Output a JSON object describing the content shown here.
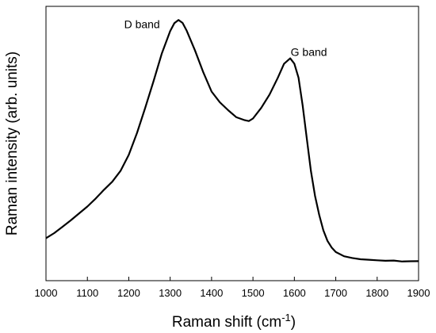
{
  "chart_data": {
    "type": "line",
    "xlabel": "Raman shift (cm",
    "xlabel_superscript": "-1",
    "xlabel_suffix": ")",
    "ylabel": "Raman intensity (arb. units)",
    "xlim": [
      1000,
      1900
    ],
    "ylim": [
      0,
      100
    ],
    "x_ticks": [
      1000,
      1100,
      1200,
      1300,
      1400,
      1500,
      1600,
      1700,
      1800,
      1900
    ],
    "y_tick_labels": false,
    "grid": false,
    "annotations": [
      {
        "text": "D band",
        "x": 1232,
        "y": 92
      },
      {
        "text": "G band",
        "x": 1635,
        "y": 82
      }
    ],
    "series": [
      {
        "x": [
          1000,
          1020,
          1040,
          1060,
          1080,
          1100,
          1120,
          1140,
          1160,
          1180,
          1200,
          1220,
          1240,
          1260,
          1280,
          1300,
          1310,
          1320,
          1330,
          1340,
          1360,
          1380,
          1400,
          1420,
          1440,
          1460,
          1480,
          1490,
          1500,
          1520,
          1540,
          1560,
          1575,
          1590,
          1600,
          1610,
          1620,
          1630,
          1640,
          1650,
          1660,
          1670,
          1680,
          1690,
          1700,
          1720,
          1740,
          1760,
          1780,
          1800,
          1820,
          1840,
          1860,
          1880,
          1900
        ],
        "y": [
          15.5,
          17.5,
          19.5,
          22,
          24.5,
          27,
          30,
          33,
          36,
          40,
          46,
          54,
          63,
          73,
          83,
          91,
          94,
          95,
          94,
          91,
          84,
          76,
          69,
          65,
          62,
          59.5,
          58.5,
          58,
          59,
          63,
          68,
          74,
          79,
          81,
          79,
          74,
          64,
          52,
          40,
          31,
          24,
          18.5,
          14.5,
          12,
          10.5,
          9,
          8.2,
          7.8,
          7.5,
          7.3,
          7.2,
          7.2,
          7.1,
          7.1,
          7.1
        ]
      }
    ]
  }
}
